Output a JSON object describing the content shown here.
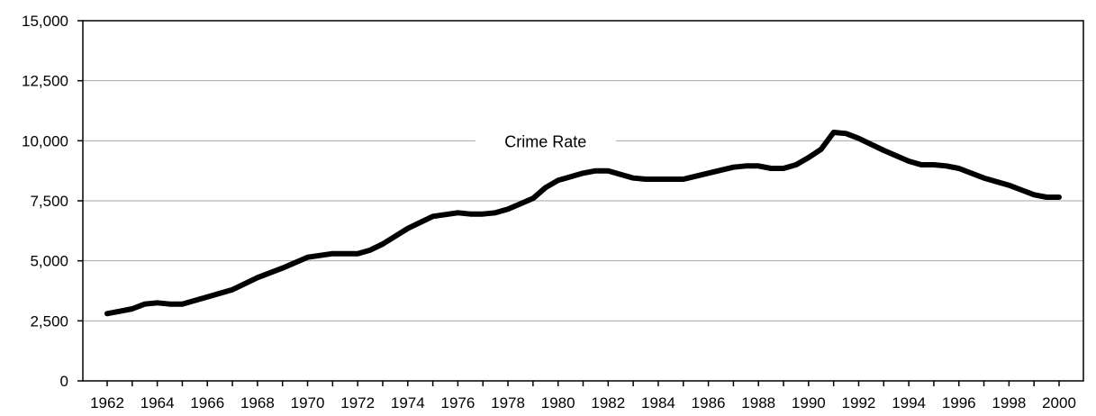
{
  "chart_data": {
    "type": "line",
    "title": "",
    "xlabel": "",
    "ylabel": "",
    "xlim": [
      1962,
      2000
    ],
    "ylim": [
      0,
      15000
    ],
    "grid": true,
    "y_ticks": [
      "0",
      "2,500",
      "5,000",
      "7,500",
      "10,000",
      "12,500",
      "15,000"
    ],
    "y_tick_values": [
      0,
      2500,
      5000,
      7500,
      10000,
      12500,
      15000
    ],
    "x_ticks": [
      "1962",
      "1964",
      "1966",
      "1968",
      "1970",
      "1972",
      "1974",
      "1976",
      "1978",
      "1980",
      "1982",
      "1984",
      "1986",
      "1988",
      "1990",
      "1992",
      "1994",
      "1996",
      "1998",
      "2000"
    ],
    "x_tick_values": [
      1962,
      1964,
      1966,
      1968,
      1970,
      1972,
      1974,
      1976,
      1978,
      1980,
      1982,
      1984,
      1986,
      1988,
      1990,
      1992,
      1994,
      1996,
      1998,
      2000
    ],
    "annotation": "Crime Rate",
    "series": [
      {
        "name": "Crime Rate",
        "color": "#000000",
        "x": [
          1962,
          1962.5,
          1963,
          1963.5,
          1964,
          1964.5,
          1965,
          1966,
          1967,
          1968,
          1969,
          1970,
          1971,
          1972,
          1972.5,
          1973,
          1974,
          1975,
          1976,
          1976.5,
          1977,
          1977.5,
          1978,
          1979,
          1979.5,
          1980,
          1981,
          1981.5,
          1982,
          1983,
          1983.5,
          1984,
          1985,
          1986,
          1987,
          1987.5,
          1988,
          1988.5,
          1989,
          1989.5,
          1990,
          1990.5,
          1991,
          1991.5,
          1992,
          1993,
          1994,
          1994.5,
          1995,
          1995.5,
          1996,
          1997,
          1998,
          1998.5,
          1999,
          1999.5,
          2000
        ],
        "y": [
          2800,
          2900,
          3000,
          3200,
          3250,
          3200,
          3200,
          3500,
          3800,
          4300,
          4700,
          5150,
          5300,
          5300,
          5450,
          5700,
          6350,
          6850,
          7000,
          6950,
          6950,
          7000,
          7150,
          7600,
          8050,
          8350,
          8650,
          8750,
          8750,
          8450,
          8400,
          8400,
          8400,
          8650,
          8900,
          8950,
          8950,
          8850,
          8850,
          9000,
          9300,
          9650,
          10350,
          10300,
          10100,
          9600,
          9150,
          9000,
          9000,
          8950,
          8850,
          8450,
          8150,
          7950,
          7750,
          7650,
          7650
        ]
      }
    ]
  }
}
